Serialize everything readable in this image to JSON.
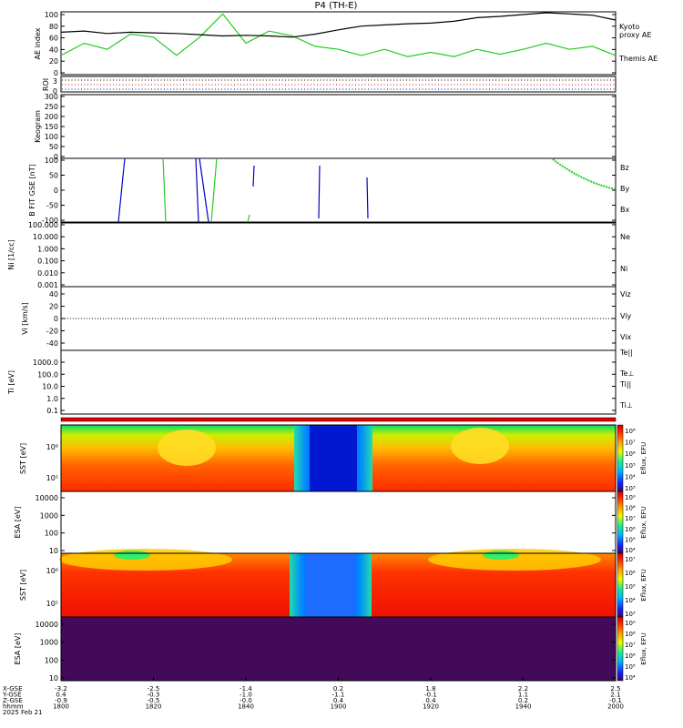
{
  "title": "P4  (TH-E)",
  "colors": {
    "black": "#000000",
    "green": "#22cc22",
    "red": "#dd0000",
    "blue": "#0000cc",
    "purple": "#440a5a"
  },
  "x_axis": {
    "labels": [
      "X-GSE",
      "Y-GSE",
      "Z-GSE",
      "hhmm",
      "2025 Feb 21"
    ],
    "ticks": [
      {
        "x": "-3.2",
        "y": "0.4",
        "z": "-0.9",
        "hhmm": "1800"
      },
      {
        "x": "-2.5",
        "y": "-0.3",
        "z": "-0.5",
        "hhmm": "1820"
      },
      {
        "x": "-1.4",
        "y": "-1.0",
        "z": "-0.0",
        "hhmm": "1840"
      },
      {
        "x": "0.2",
        "y": "-1.1",
        "z": "0.4",
        "hhmm": "1900"
      },
      {
        "x": "1.8",
        "y": "-0.1",
        "z": "0.4",
        "hhmm": "1920"
      },
      {
        "x": "2.2",
        "y": "1.1",
        "z": "0.2",
        "hhmm": "1940"
      },
      {
        "x": "2.5",
        "y": "2.1",
        "z": "-0.1",
        "hhmm": "2000"
      }
    ]
  },
  "chart_data": [
    {
      "type": "line",
      "ylabel": "AE index",
      "ylim": [
        0,
        100
      ],
      "yticks": [
        "100",
        "80",
        "60",
        "40",
        "20",
        "0"
      ],
      "x": [
        0,
        5,
        10,
        15,
        20,
        25,
        30,
        35,
        40,
        45,
        50,
        55,
        60,
        65,
        70,
        75,
        80,
        85,
        90,
        95,
        100,
        105,
        110,
        115,
        120
      ],
      "series": [
        {
          "name": "Kyoto proxy AE",
          "color": "#22cc22",
          "values": [
            30,
            50,
            40,
            65,
            60,
            30,
            60,
            98,
            50,
            70,
            62,
            45,
            40,
            30,
            40,
            28,
            35,
            28,
            40,
            32,
            40,
            50,
            40,
            45,
            30
          ]
        },
        {
          "name": "Themis AE",
          "color": "#000000",
          "values": [
            68,
            70,
            66,
            68,
            67,
            66,
            64,
            62,
            63,
            62,
            60,
            65,
            72,
            78,
            80,
            82,
            83,
            86,
            92,
            94,
            97,
            100,
            98,
            96,
            88
          ]
        }
      ]
    },
    {
      "type": "scatter",
      "ylabel": "ROI",
      "ylim": [
        0,
        3
      ],
      "yticks": [
        "3",
        "0"
      ]
    },
    {
      "type": "heatmap",
      "ylabel": "Keogram",
      "ylim": [
        0,
        300
      ],
      "yticks": [
        "300",
        "250",
        "200",
        "150",
        "100",
        "50",
        "0"
      ]
    },
    {
      "type": "line",
      "ylabel": "B FIT GSE [nT]",
      "ylim": [
        -100,
        100
      ],
      "yticks": [
        "100",
        "50",
        "0",
        "-50",
        "-100"
      ],
      "series": [
        {
          "name": "Bz",
          "color": "#dd0000"
        },
        {
          "name": "By",
          "color": "#22cc22"
        },
        {
          "name": "Bx",
          "color": "#0000cc"
        }
      ]
    },
    {
      "type": "line",
      "ylabel": "Ni [1/cc]",
      "yscale": "log",
      "ylim": [
        0.001,
        100
      ],
      "yticks": [
        "100.000",
        "10.000",
        "1.000",
        "0.100",
        "0.010",
        "0.001"
      ],
      "series": [
        {
          "name": "Ne",
          "color": "#dd0000"
        },
        {
          "name": "Ni",
          "color": "#000000"
        }
      ]
    },
    {
      "type": "line",
      "ylabel": "Vi [km/s]",
      "ylim": [
        -50,
        50
      ],
      "yticks": [
        "40",
        "20",
        "0",
        "-20",
        "-40"
      ],
      "series": [
        {
          "name": "Viz",
          "color": "#dd0000"
        },
        {
          "name": "Viy",
          "color": "#22cc22"
        },
        {
          "name": "Vix",
          "color": "#0000cc"
        }
      ]
    },
    {
      "type": "line",
      "ylabel": "Ti [eV]",
      "yscale": "log",
      "ylim": [
        0.05,
        10000
      ],
      "yticks": [
        "1000.0",
        "100.0",
        "10.0",
        "1.0",
        "0.1"
      ],
      "series": [
        {
          "name": "Te||",
          "color": "#000000"
        },
        {
          "name": "Te⊥",
          "color": "#dd0000"
        },
        {
          "name": "Ti||",
          "color": "#22cc22"
        },
        {
          "name": "Ti⊥",
          "color": "#0000cc"
        }
      ]
    },
    {
      "type": "heatmap",
      "ylabel": "SST [eV]",
      "yscale": "log",
      "yticks": [
        "10⁶",
        "10⁵"
      ],
      "colorbar": {
        "label": "Eflux, EFU",
        "ticks": [
          "10⁸",
          "10⁷",
          "10⁶",
          "10⁵",
          "10⁴",
          "10³"
        ]
      }
    },
    {
      "type": "heatmap",
      "ylabel": "ESA [eV]",
      "yscale": "log",
      "yticks": [
        "10000",
        "1000",
        "100",
        "10"
      ],
      "colorbar": {
        "label": "Eflux, EFU",
        "ticks": [
          "10⁹",
          "10⁸",
          "10⁷",
          "10⁶",
          "10⁵",
          "10⁴"
        ]
      }
    },
    {
      "type": "heatmap",
      "ylabel": "SST [eV]",
      "yscale": "log",
      "yticks": [
        "10⁶",
        "10⁵"
      ],
      "colorbar": {
        "label": "Eflux, EFU",
        "ticks": [
          "10⁷",
          "10⁶",
          "10⁵",
          "10⁴",
          "10³"
        ]
      }
    },
    {
      "type": "heatmap",
      "ylabel": "ESA [eV]",
      "yscale": "log",
      "yticks": [
        "10000",
        "1000",
        "100",
        "10"
      ],
      "colorbar": {
        "label": "Eflux, EFU",
        "ticks": [
          "10⁹",
          "10⁸",
          "10⁷",
          "10⁶",
          "10⁵",
          "10⁴"
        ]
      }
    }
  ]
}
